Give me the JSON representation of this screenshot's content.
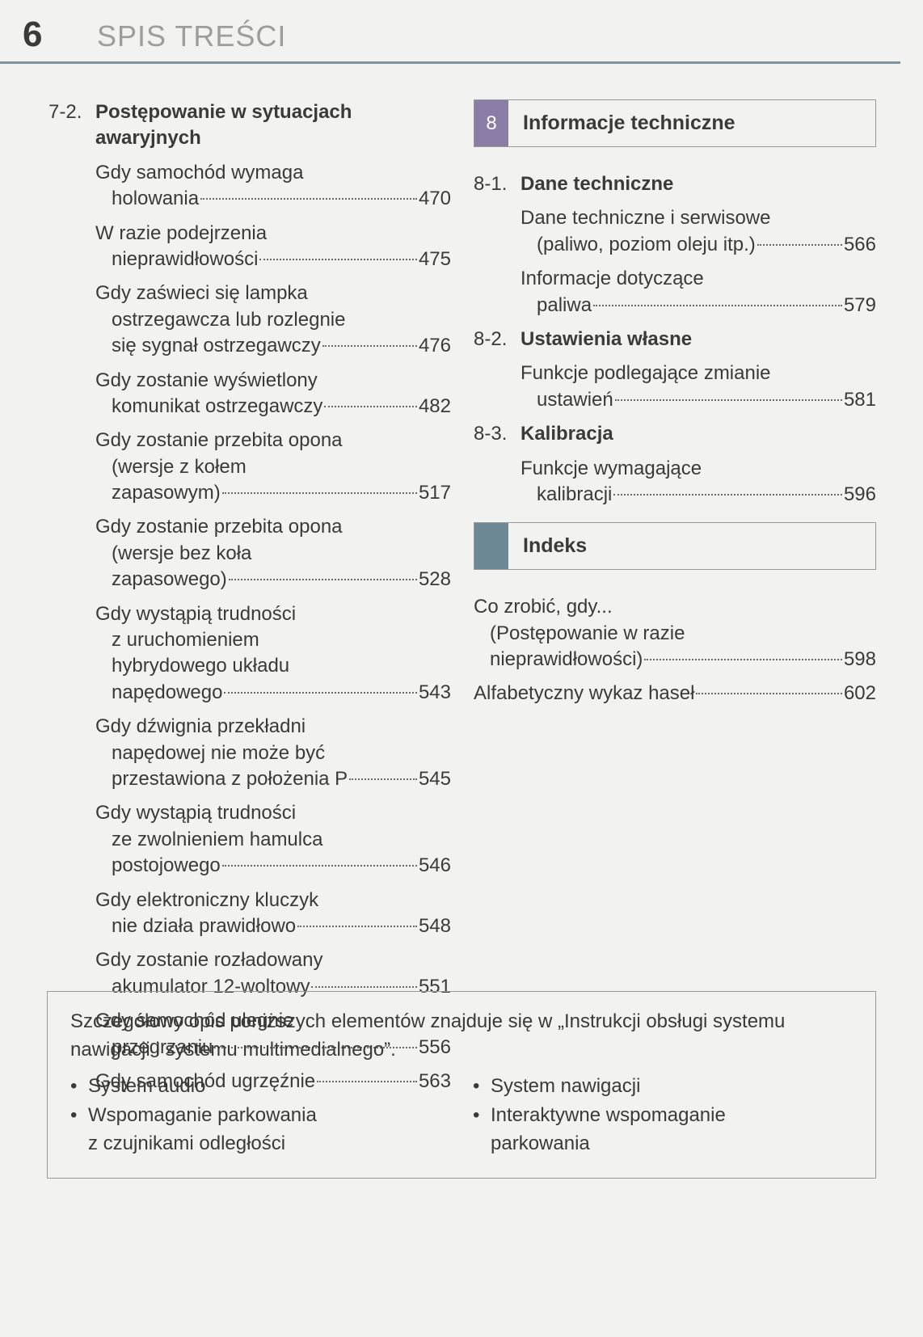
{
  "header": {
    "page_number": "6",
    "title": "SPIS TREŚCI",
    "divider_color": "#7a96a2"
  },
  "left_col": {
    "section": {
      "num": "7-2.",
      "title": "Postępowanie w sytuacjach awaryjnych"
    },
    "entries": [
      {
        "lines": [
          "Gdy samochód wymaga"
        ],
        "last_indent": "holowania",
        "page": "470"
      },
      {
        "lines": [
          "W razie podejrzenia"
        ],
        "last_indent": "nieprawidłowości",
        "page": "475"
      },
      {
        "lines": [
          "Gdy zaświeci się lampka"
        ],
        "indent_lines": [
          "ostrzegawcza lub rozlegnie"
        ],
        "last_indent": "się sygnał ostrzegawczy",
        "page": "476"
      },
      {
        "lines": [
          "Gdy zostanie wyświetlony"
        ],
        "last_indent": "komunikat ostrzegawczy",
        "page": "482"
      },
      {
        "lines": [
          "Gdy zostanie przebita opona"
        ],
        "indent_lines": [
          "(wersje z kołem"
        ],
        "last_indent": "zapasowym)",
        "page": "517"
      },
      {
        "lines": [
          "Gdy zostanie przebita opona"
        ],
        "indent_lines": [
          "(wersje bez koła"
        ],
        "last_indent": "zapasowego)",
        "page": "528"
      },
      {
        "lines": [
          "Gdy wystąpią trudności"
        ],
        "indent_lines": [
          "z uruchomieniem",
          "hybrydowego układu"
        ],
        "last_indent": "napędowego",
        "page": "543"
      },
      {
        "lines": [
          "Gdy dźwignia przekładni"
        ],
        "indent_lines": [
          "napędowej nie może być"
        ],
        "last_indent": "przestawiona  z położenia P",
        "page": "545"
      },
      {
        "lines": [
          "Gdy wystąpią trudności"
        ],
        "indent_lines": [
          "ze zwolnieniem hamulca"
        ],
        "last_indent": "postojowego",
        "page": "546"
      },
      {
        "lines": [
          "Gdy elektroniczny kluczyk"
        ],
        "last_indent": "nie działa prawidłowo",
        "page": "548"
      },
      {
        "lines": [
          "Gdy zostanie rozładowany"
        ],
        "last_indent": "akumulator 12-woltowy",
        "page": "551"
      },
      {
        "lines": [
          "Gdy samochód ulegnie"
        ],
        "last_indent": "przegrzaniu",
        "page": "556"
      },
      {
        "single": "Gdy samochód ugrzęźnie",
        "page": "563"
      }
    ]
  },
  "right_col": {
    "chapter": {
      "num": "8",
      "label": "Informacje techniczne",
      "tab_color": "#8b7da8"
    },
    "sections": [
      {
        "num": "8-1.",
        "title": "Dane techniczne",
        "entries": [
          {
            "lines": [
              "Dane techniczne i serwisowe"
            ],
            "last_indent": "(paliwo, poziom oleju itp.)",
            "page": "566"
          },
          {
            "lines": [
              "Informacje dotyczące"
            ],
            "last_indent": "paliwa",
            "page": "579"
          }
        ]
      },
      {
        "num": "8-2.",
        "title": "Ustawienia własne",
        "entries": [
          {
            "lines": [
              "Funkcje podlegające zmianie"
            ],
            "last_indent": "ustawień",
            "page": "581"
          }
        ]
      },
      {
        "num": "8-3.",
        "title": "Kalibracja",
        "entries": [
          {
            "lines": [
              "Funkcje wymagające"
            ],
            "last_indent": "kalibracji",
            "page": "596"
          }
        ]
      }
    ],
    "index_box": {
      "label": "Indeks",
      "tab_color": "#6d8995"
    },
    "index_entries": [
      {
        "lines": [
          "Co zrobić, gdy..."
        ],
        "indent_lines": [
          "(Postępowanie w razie"
        ],
        "last_indent": "nieprawidłowości)",
        "page": "598"
      },
      {
        "single": "Alfabetyczny wykaz haseł",
        "page": "602"
      }
    ]
  },
  "footer": {
    "intro": "Szczegółowy opis poniższych elementów znajduje się w „Instrukcji obsługi systemu nawigacji i systemu multimedialnego”.",
    "left": [
      {
        "text": "System audio"
      },
      {
        "text": "Wspomaganie parkowania",
        "sub": "z czujnikami odległości"
      }
    ],
    "right": [
      {
        "text": "System nawigacji"
      },
      {
        "text": "Interaktywne wspomaganie",
        "sub": "parkowania"
      }
    ]
  }
}
